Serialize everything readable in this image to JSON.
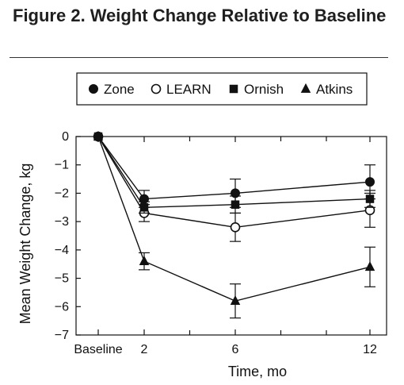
{
  "figure": {
    "number": "Figure 2.",
    "title": "Weight Change Relative to Baseline"
  },
  "chart_data": {
    "type": "line",
    "title": "",
    "xlabel": "Time, mo",
    "ylabel": "Mean Weight Change, kg",
    "categories": [
      "Baseline",
      "2",
      "6",
      "12"
    ],
    "x": [
      0,
      2,
      6,
      12
    ],
    "ylim": [
      -7,
      0
    ],
    "yticks": [
      0,
      -1,
      -2,
      -3,
      -4,
      -5,
      -6,
      -7
    ],
    "ytick_labels": [
      "0",
      "−1",
      "−2",
      "−3",
      "−4",
      "−5",
      "−6",
      "−7"
    ],
    "grid": false,
    "legend_position": "top",
    "series": [
      {
        "name": "Zone",
        "marker": "filled-circle",
        "values": [
          0,
          -2.2,
          -2.0,
          -1.6
        ],
        "err": [
          0,
          0.3,
          0.5,
          0.6
        ]
      },
      {
        "name": "LEARN",
        "marker": "open-circle",
        "values": [
          0,
          -2.7,
          -3.2,
          -2.6
        ],
        "err": [
          0,
          0.3,
          0.5,
          0.6
        ]
      },
      {
        "name": "Ornish",
        "marker": "filled-square",
        "values": [
          0,
          -2.5,
          -2.4,
          -2.2
        ],
        "err": [
          0,
          0.2,
          0.3,
          0.3
        ]
      },
      {
        "name": "Atkins",
        "marker": "filled-triangle",
        "values": [
          0,
          -4.4,
          -5.8,
          -4.6
        ],
        "err": [
          0,
          0.3,
          0.6,
          0.7
        ]
      }
    ]
  }
}
